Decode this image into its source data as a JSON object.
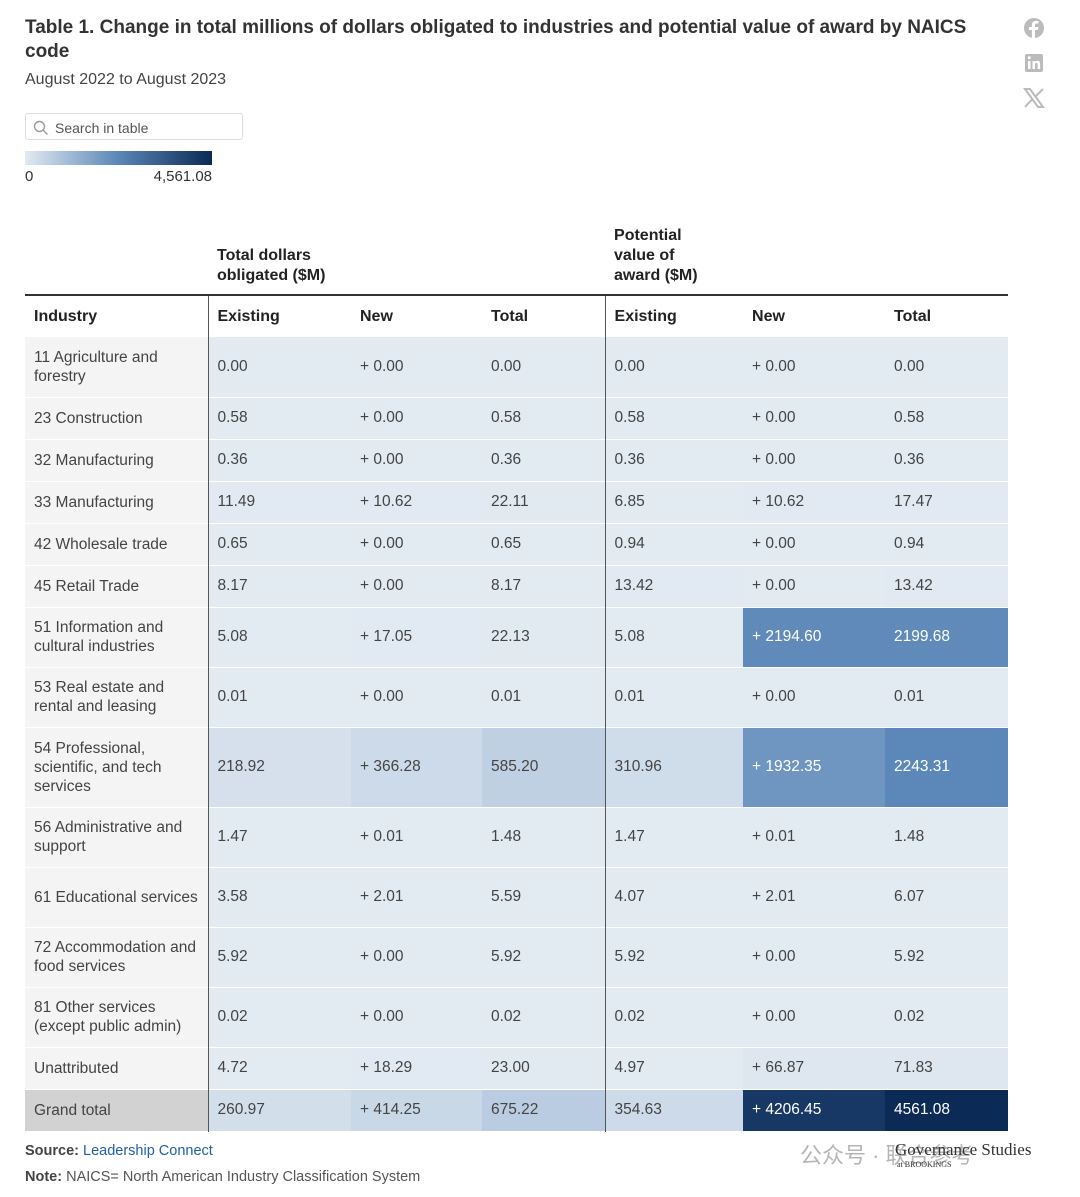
{
  "header": {
    "title": "Table 1. Change in total millions of dollars obligated to industries and potential value of award by NAICS code",
    "subtitle": "August 2022 to August 2023"
  },
  "search_placeholder": "Search in table",
  "color_scale": {
    "min": 0,
    "max": 4561.08,
    "min_label": "0",
    "max_label": "4,561.08"
  },
  "table": {
    "group_headers": [
      "Total dollars obligated ($M)",
      "Potential value of award ($M)"
    ],
    "columns": [
      "Industry",
      "Existing",
      "New",
      "Total",
      "Existing",
      "New",
      "Total"
    ],
    "rows": [
      {
        "industry": "11 Agriculture and forestry",
        "cells": [
          "0.00",
          "+ 0.00",
          "0.00",
          "0.00",
          "+ 0.00",
          "0.00"
        ]
      },
      {
        "industry": "23 Construction",
        "cells": [
          "0.58",
          "+ 0.00",
          "0.58",
          "0.58",
          "+ 0.00",
          "0.58"
        ]
      },
      {
        "industry": "32 Manufacturing",
        "cells": [
          "0.36",
          "+ 0.00",
          "0.36",
          "0.36",
          "+ 0.00",
          "0.36"
        ]
      },
      {
        "industry": "33 Manufacturing",
        "cells": [
          "11.49",
          "+ 10.62",
          "22.11",
          "6.85",
          "+ 10.62",
          "17.47"
        ]
      },
      {
        "industry": "42 Wholesale trade",
        "cells": [
          "0.65",
          "+ 0.00",
          "0.65",
          "0.94",
          "+ 0.00",
          "0.94"
        ]
      },
      {
        "industry": "45 Retail Trade",
        "cells": [
          "8.17",
          "+ 0.00",
          "8.17",
          "13.42",
          "+ 0.00",
          "13.42"
        ]
      },
      {
        "industry": "51 Information and cultural industries",
        "cells": [
          "5.08",
          "+ 17.05",
          "22.13",
          "5.08",
          "+ 2194.60",
          "2199.68"
        ]
      },
      {
        "industry": "53 Real estate and rental and leasing",
        "cells": [
          "0.01",
          "+ 0.00",
          "0.01",
          "0.01",
          "+ 0.00",
          "0.01"
        ]
      },
      {
        "industry": "54 Professional, scientific, and tech services",
        "cells": [
          "218.92",
          "+ 366.28",
          "585.20",
          "310.96",
          "+ 1932.35",
          "2243.31"
        ]
      },
      {
        "industry": "56 Administrative and support",
        "cells": [
          "1.47",
          "+ 0.01",
          "1.48",
          "1.47",
          "+ 0.01",
          "1.48"
        ]
      },
      {
        "industry": "61 Educational services",
        "cells": [
          "3.58",
          "+ 2.01",
          "5.59",
          "4.07",
          "+ 2.01",
          "6.07"
        ]
      },
      {
        "industry": "72 Accommodation and food services",
        "cells": [
          "5.92",
          "+ 0.00",
          "5.92",
          "5.92",
          "+ 0.00",
          "5.92"
        ]
      },
      {
        "industry": "81 Other services (except public admin)",
        "cells": [
          "0.02",
          "+ 0.00",
          "0.02",
          "0.02",
          "+ 0.00",
          "0.02"
        ]
      },
      {
        "industry": "Unattributed",
        "cells": [
          "4.72",
          "+ 18.29",
          "23.00",
          "4.97",
          "+ 66.87",
          "71.83"
        ]
      },
      {
        "industry": "Grand total",
        "cells": [
          "260.97",
          "+ 414.25",
          "675.22",
          "354.63",
          "+ 4206.45",
          "4561.08"
        ]
      }
    ]
  },
  "footer": {
    "source_label": "Source:",
    "source": "Leadership Connect",
    "note_label": "Note:",
    "note": "NAICS= North American Industry Classification System"
  },
  "watermark": {
    "text": "公众号 · 联合参考",
    "brand": "Governance Studies",
    "brand_sub": "at BROOKINGS"
  }
}
